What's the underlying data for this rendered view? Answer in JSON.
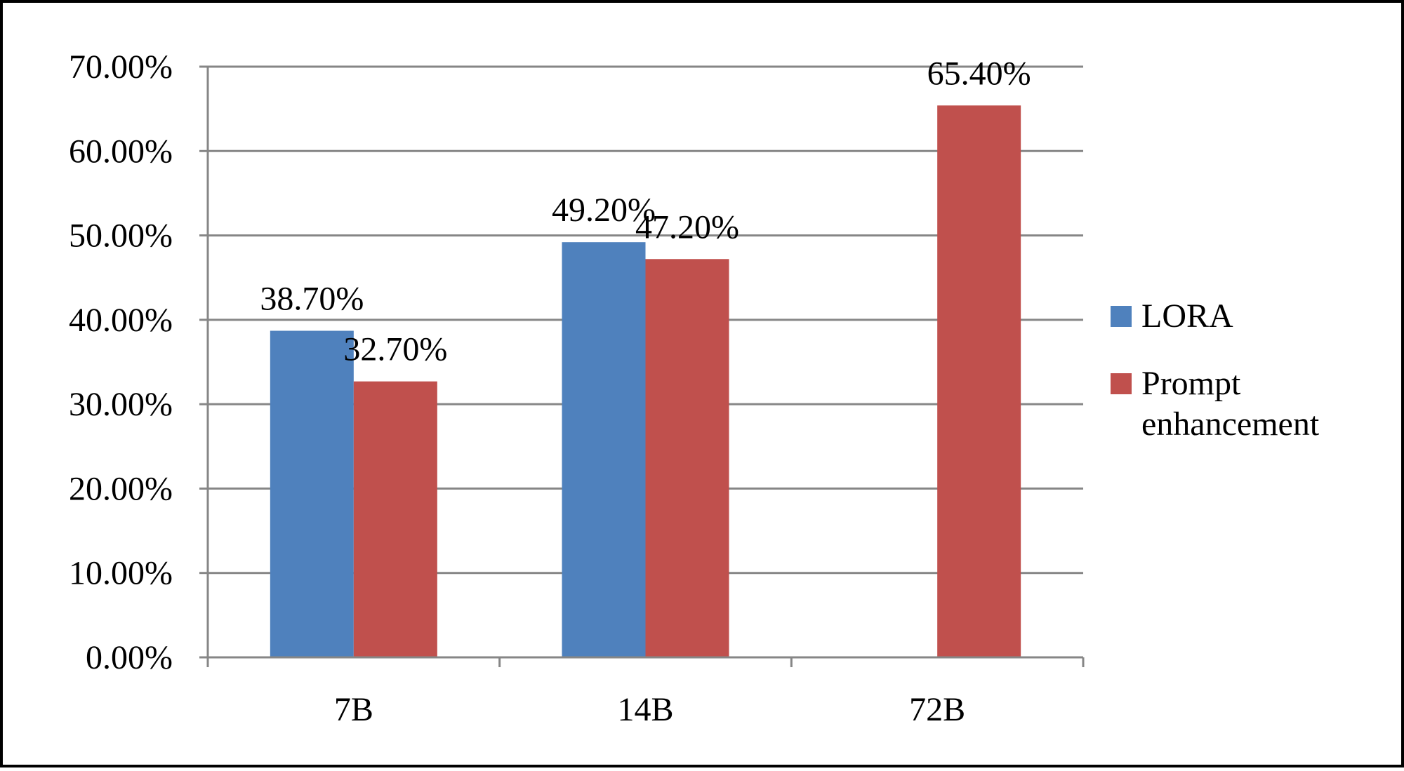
{
  "chart_data": {
    "type": "bar",
    "categories": [
      "7B",
      "14B",
      "72B"
    ],
    "series": [
      {
        "name": "LORA",
        "values": [
          38.7,
          49.2,
          null
        ],
        "labels": [
          "38.70%",
          "49.20%",
          null
        ],
        "color": "#4F81BD"
      },
      {
        "name": "Prompt enhancement",
        "values": [
          32.7,
          47.2,
          65.4
        ],
        "labels": [
          "32.70%",
          "47.20%",
          "65.40%"
        ],
        "color": "#C0504D"
      }
    ],
    "y_ticks": [
      0,
      10,
      20,
      30,
      40,
      50,
      60,
      70
    ],
    "y_tick_labels": [
      "0.00%",
      "10.00%",
      "20.00%",
      "30.00%",
      "40.00%",
      "50.00%",
      "60.00%",
      "70.00%"
    ],
    "ylim": [
      0,
      70
    ],
    "grid": true,
    "legend_position": "right",
    "legend_labels": [
      "LORA",
      "Prompt\nenhancement"
    ]
  }
}
